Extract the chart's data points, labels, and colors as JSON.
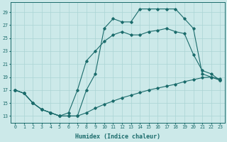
{
  "xlabel": "Humidex (Indice chaleur)",
  "xlim": [
    -0.5,
    23.5
  ],
  "ylim": [
    12.0,
    30.5
  ],
  "yticks": [
    13,
    15,
    17,
    19,
    21,
    23,
    25,
    27,
    29
  ],
  "xticks": [
    0,
    1,
    2,
    3,
    4,
    5,
    6,
    7,
    8,
    9,
    10,
    11,
    12,
    13,
    14,
    15,
    16,
    17,
    18,
    19,
    20,
    21,
    22,
    23
  ],
  "bg_color": "#cce9e9",
  "grid_color": "#aad4d4",
  "line_color": "#1a6b6b",
  "line1_x": [
    0,
    1,
    2,
    3,
    4,
    5,
    6,
    7,
    8,
    9,
    10,
    11,
    12,
    13,
    14,
    15,
    16,
    17,
    18,
    19,
    20,
    21,
    22,
    23
  ],
  "line1_y": [
    17.0,
    16.5,
    15.0,
    14.0,
    13.5,
    13.0,
    13.0,
    13.0,
    13.5,
    14.2,
    14.8,
    15.3,
    15.8,
    16.2,
    16.6,
    17.0,
    17.3,
    17.6,
    17.9,
    18.3,
    18.6,
    18.9,
    19.0,
    18.7
  ],
  "line2_x": [
    0,
    1,
    2,
    3,
    4,
    5,
    6,
    7,
    8,
    9,
    10,
    11,
    12,
    13,
    14,
    15,
    16,
    17,
    18,
    19,
    20,
    21,
    22,
    23
  ],
  "line2_y": [
    17.0,
    16.5,
    15.0,
    14.0,
    13.5,
    13.0,
    13.5,
    17.0,
    21.5,
    23.0,
    24.5,
    25.5,
    26.0,
    25.5,
    25.5,
    26.0,
    26.2,
    26.5,
    26.0,
    25.7,
    22.5,
    20.0,
    19.5,
    18.5
  ],
  "line3_x": [
    0,
    1,
    2,
    3,
    4,
    5,
    6,
    7,
    8,
    9,
    10,
    11,
    12,
    13,
    14,
    15,
    16,
    17,
    18,
    19,
    20,
    21,
    22,
    23
  ],
  "line3_y": [
    17.0,
    16.5,
    15.0,
    14.0,
    13.5,
    13.0,
    13.0,
    13.0,
    17.0,
    19.5,
    26.5,
    28.0,
    27.5,
    27.5,
    29.5,
    29.5,
    29.5,
    29.5,
    29.5,
    28.0,
    26.5,
    19.5,
    19.0,
    18.5
  ]
}
